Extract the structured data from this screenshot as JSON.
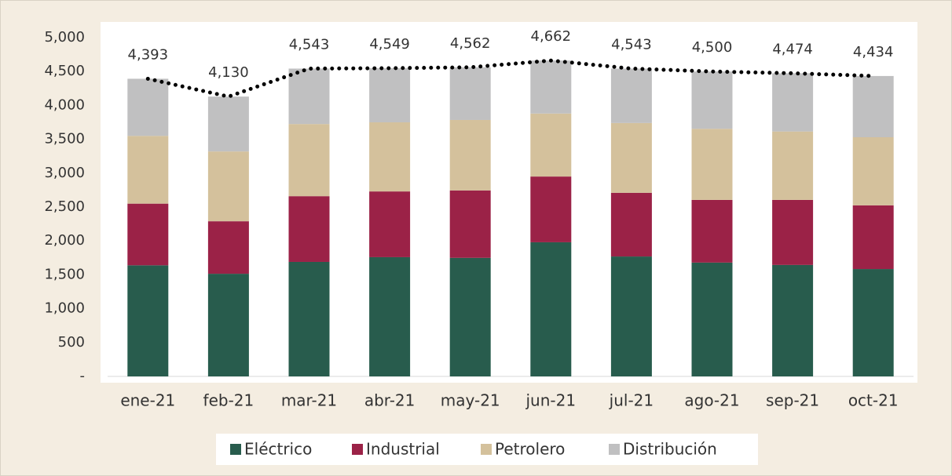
{
  "chart_data": {
    "type": "stacked_bar",
    "categories": [
      "ene-21",
      "feb-21",
      "mar-21",
      "abr-21",
      "may-21",
      "jun-21",
      "jul-21",
      "ago-21",
      "sep-21",
      "oct-21"
    ],
    "series": [
      {
        "name": "Eléctrico",
        "color": "#285c4d",
        "values": [
          1640,
          1515,
          1690,
          1760,
          1750,
          1980,
          1770,
          1680,
          1645,
          1585
        ]
      },
      {
        "name": "Industrial",
        "color": "#9b2247",
        "values": [
          910,
          775,
          970,
          970,
          995,
          970,
          940,
          925,
          960,
          940
        ]
      },
      {
        "name": "Petrolero",
        "color": "#d4c19c",
        "values": [
          1000,
          1030,
          1065,
          1020,
          1040,
          930,
          1030,
          1050,
          1010,
          1005
        ]
      },
      {
        "name": "Distribución",
        "color": "#c0c0c1",
        "values": [
          843,
          810,
          818,
          799,
          777,
          782,
          803,
          845,
          859,
          904
        ]
      }
    ],
    "line": {
      "color": "#000000",
      "values": [
        4393,
        4130,
        4543,
        4549,
        4562,
        4662,
        4543,
        4500,
        4474,
        4434
      ],
      "value_labels": [
        "4,393",
        "4,130",
        "4,543",
        "4,549",
        "4,562",
        "4,662",
        "4,543",
        "4,500",
        "4,474",
        "4,434"
      ]
    },
    "ylim": [
      0,
      5000
    ],
    "yticks": [
      {
        "value": 0,
        "label": "-"
      },
      500,
      {
        "value": 1000,
        "label": "1,000"
      },
      {
        "value": 1500,
        "label": "1,500"
      },
      {
        "value": 2000,
        "label": "2,000"
      },
      {
        "value": 2500,
        "label": "2,500"
      },
      {
        "value": 3000,
        "label": "3,000"
      },
      {
        "value": 3500,
        "label": "3,500"
      },
      {
        "value": 4000,
        "label": "4,000"
      },
      {
        "value": 4500,
        "label": "4,500"
      },
      {
        "value": 5000,
        "label": "5,000"
      }
    ],
    "legend": "bottom"
  }
}
